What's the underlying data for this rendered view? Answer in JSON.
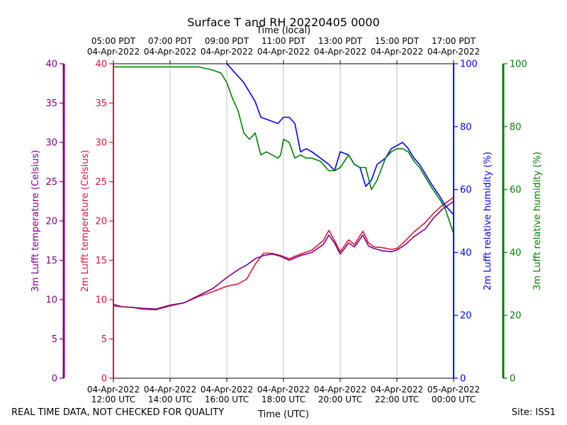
{
  "chart_data": {
    "type": "line",
    "title": "Surface T and RH 20220405 0000",
    "top_axis_label": "Time (local)",
    "bottom_axis_label": "Time (UTC)",
    "x_hours_utc": [
      12,
      24
    ],
    "bottom_ticks": [
      {
        "hour": 12,
        "date": "04-Apr-2022",
        "time": "12:00 UTC"
      },
      {
        "hour": 14,
        "date": "04-Apr-2022",
        "time": "14:00 UTC"
      },
      {
        "hour": 16,
        "date": "04-Apr-2022",
        "time": "16:00 UTC"
      },
      {
        "hour": 18,
        "date": "04-Apr-2022",
        "time": "18:00 UTC"
      },
      {
        "hour": 20,
        "date": "04-Apr-2022",
        "time": "20:00 UTC"
      },
      {
        "hour": 22,
        "date": "04-Apr-2022",
        "time": "22:00 UTC"
      },
      {
        "hour": 24,
        "date": "05-Apr-2022",
        "time": "00:00 UTC"
      }
    ],
    "top_ticks": [
      {
        "hour": 12,
        "time": "05:00 PDT",
        "date": "04-Apr-2022"
      },
      {
        "hour": 14,
        "time": "07:00 PDT",
        "date": "04-Apr-2022"
      },
      {
        "hour": 16,
        "time": "09:00 PDT",
        "date": "04-Apr-2022"
      },
      {
        "hour": 18,
        "time": "11:00 PDT",
        "date": "04-Apr-2022"
      },
      {
        "hour": 20,
        "time": "13:00 PDT",
        "date": "04-Apr-2022"
      },
      {
        "hour": 22,
        "time": "15:00 PDT",
        "date": "04-Apr-2022"
      },
      {
        "hour": 24,
        "time": "17:00 PDT",
        "date": "04-Apr-2022"
      }
    ],
    "grid": "vertical",
    "axes": {
      "t3m": {
        "label": "3m Lufft temperature (Celsius)",
        "range": [
          0,
          40
        ],
        "ticks": [
          0,
          5,
          10,
          15,
          20,
          25,
          30,
          35,
          40
        ],
        "color": "#800080"
      },
      "t2m": {
        "label": "2m Lufft temperature (Celsius)",
        "range": [
          0,
          40
        ],
        "ticks": [
          0,
          5,
          10,
          15,
          20,
          25,
          30,
          35,
          40
        ],
        "color": "#dc143c"
      },
      "rh2m": {
        "label": "2m Lufft relative humidity (%)",
        "range": [
          0,
          100
        ],
        "ticks": [
          0,
          20,
          40,
          60,
          80,
          100
        ],
        "color": "#0000ff"
      },
      "rh3m": {
        "label": "3m Lufft relative humidity (%)",
        "range": [
          0,
          100
        ],
        "ticks": [
          0,
          20,
          40,
          60,
          80,
          100
        ],
        "color": "#008000"
      }
    },
    "series": [
      {
        "name": "2m Lufft temperature",
        "axis": "t2m",
        "color": "#dc143c",
        "x": [
          12.0,
          12.3,
          12.7,
          13.0,
          13.5,
          14.0,
          14.5,
          15.0,
          15.5,
          16.0,
          16.4,
          16.7,
          17.0,
          17.3,
          17.6,
          17.9,
          18.2,
          18.6,
          19.0,
          19.4,
          19.6,
          19.8,
          20.0,
          20.3,
          20.5,
          20.8,
          21.0,
          21.2,
          21.5,
          21.8,
          22.0,
          22.3,
          22.6,
          23.0,
          23.3,
          23.6,
          24.0
        ],
        "y": [
          9.2,
          9.1,
          9.0,
          8.8,
          8.7,
          9.2,
          9.6,
          10.4,
          11.0,
          11.7,
          12.0,
          12.6,
          14.5,
          15.9,
          15.9,
          15.6,
          15.2,
          15.8,
          16.3,
          17.5,
          18.8,
          17.5,
          16.1,
          17.6,
          17.0,
          18.7,
          17.2,
          16.7,
          16.6,
          16.4,
          16.5,
          17.5,
          18.6,
          19.8,
          21.0,
          22.0,
          23.0
        ]
      },
      {
        "name": "3m Lufft temperature",
        "axis": "t3m",
        "color": "#800080",
        "x": [
          12.0,
          12.3,
          12.7,
          13.0,
          13.5,
          14.0,
          14.5,
          15.0,
          15.5,
          16.0,
          16.4,
          16.7,
          17.0,
          17.3,
          17.6,
          17.9,
          18.2,
          18.6,
          19.0,
          19.4,
          19.6,
          19.8,
          20.0,
          20.3,
          20.5,
          20.8,
          21.0,
          21.2,
          21.5,
          21.8,
          22.0,
          22.3,
          22.6,
          23.0,
          23.3,
          23.6,
          24.0
        ],
        "y": [
          9.4,
          9.1,
          9.0,
          8.9,
          8.8,
          9.3,
          9.6,
          10.5,
          11.4,
          12.8,
          13.8,
          14.4,
          15.2,
          15.6,
          15.8,
          15.5,
          15.0,
          15.6,
          16.0,
          17.0,
          18.2,
          17.2,
          15.8,
          17.2,
          16.7,
          18.2,
          16.8,
          16.5,
          16.2,
          16.1,
          16.3,
          17.0,
          18.0,
          19.0,
          20.4,
          21.5,
          22.5
        ]
      },
      {
        "name": "2m Lufft relative humidity",
        "axis": "rh2m",
        "color": "#0000ff",
        "x": [
          16.0,
          16.3,
          16.6,
          16.8,
          17.0,
          17.2,
          17.5,
          17.8,
          18.0,
          18.2,
          18.4,
          18.6,
          18.8,
          19.0,
          19.3,
          19.6,
          19.8,
          20.0,
          20.3,
          20.5,
          20.7,
          20.9,
          21.1,
          21.3,
          21.6,
          21.8,
          22.0,
          22.2,
          22.4,
          22.6,
          22.8,
          23.0,
          23.2,
          23.5,
          23.7,
          24.0
        ],
        "y": [
          100,
          97,
          94,
          91,
          88,
          83,
          82,
          81,
          83,
          83,
          81,
          72,
          73,
          72,
          70,
          68,
          66,
          72,
          71,
          68,
          67,
          61,
          63,
          68,
          70,
          73,
          74,
          75,
          73,
          70,
          68,
          65,
          62,
          58,
          55,
          52
        ]
      },
      {
        "name": "3m Lufft relative humidity",
        "axis": "rh3m",
        "color": "#008000",
        "x": [
          12.0,
          13.0,
          14.0,
          15.0,
          15.5,
          15.8,
          16.0,
          16.2,
          16.4,
          16.6,
          16.8,
          17.0,
          17.2,
          17.4,
          17.6,
          17.8,
          17.9,
          18.0,
          18.2,
          18.4,
          18.6,
          18.8,
          19.0,
          19.3,
          19.6,
          19.8,
          20.0,
          20.3,
          20.5,
          20.7,
          20.9,
          21.1,
          21.3,
          21.6,
          21.8,
          22.0,
          22.2,
          22.4,
          22.6,
          22.8,
          23.0,
          23.2,
          23.5,
          23.7,
          24.0
        ],
        "y": [
          99,
          99,
          99,
          99,
          98,
          97,
          94,
          89,
          85,
          78,
          76,
          78,
          71,
          72,
          71,
          70,
          71,
          76,
          75,
          70,
          71,
          70,
          70,
          69,
          66,
          66,
          67,
          71,
          68,
          67,
          67,
          60,
          63,
          70,
          72,
          73,
          73,
          72,
          69,
          67,
          64,
          61,
          57,
          54,
          46
        ]
      }
    ],
    "footer_left": "REAL TIME DATA, NOT CHECKED FOR QUALITY",
    "footer_right": "Site: ISS1"
  }
}
